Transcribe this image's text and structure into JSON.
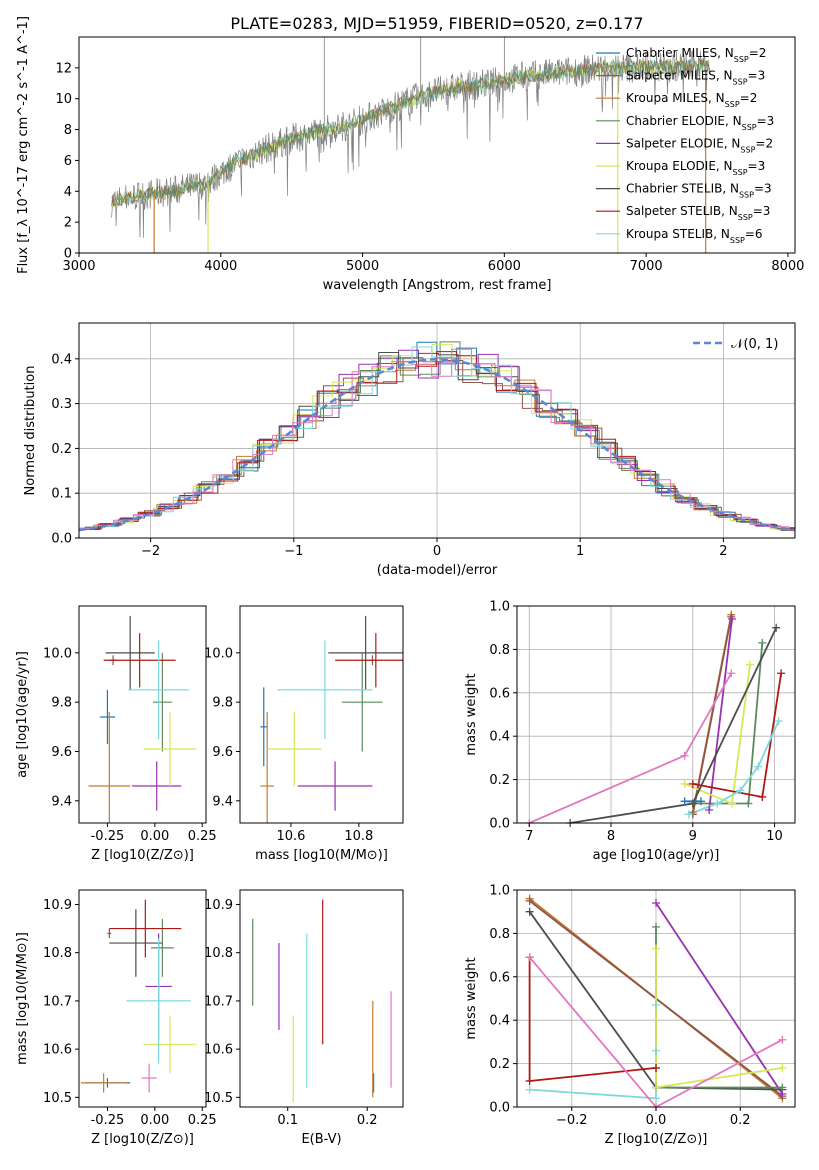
{
  "title": "PLATE=0283, MJD=51959, FIBERID=0520, z=0.177",
  "models": [
    {
      "name": "Chabrier MILES",
      "nssp": "2",
      "color": "#1f77b4"
    },
    {
      "name": "Salpeter MILES",
      "nssp": "3",
      "color": "#8c564b"
    },
    {
      "name": "Kroupa MILES",
      "nssp": "2",
      "color": "#c47a30"
    },
    {
      "name": "Chabrier ELODIE",
      "nssp": "3",
      "color": "#5c8a5c"
    },
    {
      "name": "Salpeter ELODIE",
      "nssp": "2",
      "color": "#9932b0"
    },
    {
      "name": "Kroupa ELODIE",
      "nssp": "3",
      "color": "#d4e85a"
    },
    {
      "name": "Chabrier STELIB",
      "nssp": "3",
      "color": "#4d4d4d"
    },
    {
      "name": "Salpeter STELIB",
      "nssp": "3",
      "color": "#b01818"
    },
    {
      "name": "Kroupa STELIB",
      "nssp": "6",
      "color": "#7fd8e0"
    }
  ],
  "colors": {
    "data": "#808080",
    "mean": "#e377c2",
    "normal": "#5a86d6",
    "grid": "#b0b0b0"
  },
  "chart_data": [
    {
      "type": "line",
      "id": "spectrum",
      "xlabel": "wavelength [Angstrom, rest frame]",
      "ylabel": "Flux [f_λ 10^-17 erg cm^-2 s^-1 A^-1]",
      "xlim": [
        3000,
        8050
      ],
      "ylim": [
        0,
        14
      ],
      "xticks": [
        3000,
        4000,
        5000,
        6000,
        7000,
        8000
      ],
      "yticks": [
        0,
        2,
        4,
        6,
        8,
        10,
        12
      ],
      "continuum": [
        [
          3230,
          3.3
        ],
        [
          3350,
          3.6
        ],
        [
          3500,
          3.8
        ],
        [
          3700,
          4.1
        ],
        [
          3900,
          4.5
        ],
        [
          4000,
          5.2
        ],
        [
          4100,
          5.8
        ],
        [
          4300,
          6.7
        ],
        [
          4500,
          7.4
        ],
        [
          4700,
          7.9
        ],
        [
          4900,
          8.3
        ],
        [
          5100,
          9.0
        ],
        [
          5300,
          9.8
        ],
        [
          5500,
          10.4
        ],
        [
          5700,
          10.8
        ],
        [
          5900,
          11.0
        ],
        [
          6100,
          11.4
        ],
        [
          6300,
          11.6
        ],
        [
          6500,
          11.8
        ],
        [
          6700,
          12.0
        ],
        [
          6900,
          12.0
        ],
        [
          7100,
          12.1
        ],
        [
          7300,
          12.1
        ],
        [
          7450,
          12.2
        ]
      ],
      "drop_lines": [
        [
          3530,
          "#c47a30"
        ],
        [
          3910,
          "#d4e85a"
        ],
        [
          6800,
          "#d4e85a"
        ],
        [
          7420,
          "#c47a30"
        ]
      ],
      "spikes": [
        [
          4730,
          14
        ],
        [
          5410,
          14
        ],
        [
          6000,
          14
        ]
      ]
    },
    {
      "type": "line",
      "id": "residual-histogram",
      "xlabel": "(data-model)/error",
      "ylabel": "Normed distribution",
      "xlim": [
        -2.5,
        2.5
      ],
      "ylim": [
        0,
        0.48
      ],
      "xticks": [
        -2,
        -1,
        0,
        1,
        2
      ],
      "yticks": [
        0,
        0.1,
        0.2,
        0.3,
        0.4
      ],
      "legend": "𝒩(0, 1)"
    },
    {
      "type": "scatter",
      "id": "age-vs-Z",
      "xlabel": "Z [log10(Z/Z⊙)]",
      "ylabel": "age [log10(age/yr)]",
      "xlim": [
        -0.4,
        0.27
      ],
      "ylim": [
        9.31,
        10.19
      ],
      "xticks": [
        -0.25,
        0.0,
        0.25
      ],
      "yticks": [
        9.4,
        9.6,
        9.8,
        10.0
      ],
      "points": [
        {
          "c": 0,
          "x": -0.25,
          "y": 9.74,
          "xe": 0.04,
          "ye": 0.11
        },
        {
          "c": 1,
          "x": -0.22,
          "y": 9.97,
          "xe": 0.02,
          "ye": 0.02
        },
        {
          "c": 2,
          "x": -0.24,
          "y": 9.46,
          "xe": 0.11,
          "ye": 0.3
        },
        {
          "c": 3,
          "x": 0.04,
          "y": 9.8,
          "xe": 0.05,
          "ye": 0.2
        },
        {
          "c": 4,
          "x": 0.01,
          "y": 9.46,
          "xe": 0.13,
          "ye": 0.1
        },
        {
          "c": 5,
          "x": 0.08,
          "y": 9.61,
          "xe": 0.14,
          "ye": 0.15
        },
        {
          "c": 6,
          "x": -0.13,
          "y": 10.0,
          "xe": 0.13,
          "ye": 0.15
        },
        {
          "c": 7,
          "x": -0.08,
          "y": 9.97,
          "xe": 0.19,
          "ye": 0.11
        },
        {
          "c": 8,
          "x": 0.02,
          "y": 9.85,
          "xe": 0.16,
          "ye": 0.2
        }
      ]
    },
    {
      "type": "scatter",
      "id": "age-vs-mass",
      "xlabel": "mass [log10(M/M⊙)]",
      "ylabel": "",
      "xlim": [
        10.45,
        10.93
      ],
      "ylim": [
        9.31,
        10.19
      ],
      "xticks": [
        10.6,
        10.8
      ],
      "yticks": [
        9.4,
        9.6,
        9.8,
        10.0
      ],
      "points": [
        {
          "c": 0,
          "x": 10.52,
          "y": 9.7,
          "xe": 0.01,
          "ye": 0.16
        },
        {
          "c": 1,
          "x": 10.84,
          "y": 9.97,
          "xe": 0.01,
          "ye": 0.02
        },
        {
          "c": 2,
          "x": 10.53,
          "y": 9.46,
          "xe": 0.02,
          "ye": 0.3
        },
        {
          "c": 3,
          "x": 10.81,
          "y": 9.8,
          "xe": 0.06,
          "ye": 0.2
        },
        {
          "c": 4,
          "x": 10.73,
          "y": 9.46,
          "xe": 0.11,
          "ye": 0.1
        },
        {
          "c": 5,
          "x": 10.61,
          "y": 9.61,
          "xe": 0.08,
          "ye": 0.15
        },
        {
          "c": 6,
          "x": 10.82,
          "y": 10.0,
          "xe": 0.11,
          "ye": 0.15
        },
        {
          "c": 7,
          "x": 10.85,
          "y": 9.97,
          "xe": 0.12,
          "ye": 0.11
        },
        {
          "c": 8,
          "x": 10.7,
          "y": 9.85,
          "xe": 0.14,
          "ye": 0.2
        }
      ]
    },
    {
      "type": "line",
      "id": "mass-weight-vs-age",
      "xlabel": "age [log10(age/yr)]",
      "ylabel": "mass weight",
      "xlim": [
        6.85,
        10.25
      ],
      "ylim": [
        0,
        1
      ],
      "xticks": [
        7,
        8,
        9,
        10
      ],
      "yticks": [
        0.0,
        0.2,
        0.4,
        0.6,
        0.8,
        1.0
      ],
      "series": [
        {
          "c": 3,
          "points": [
            [
              9.0,
              0.09
            ],
            [
              9.68,
              0.09
            ],
            [
              9.85,
              0.83
            ]
          ]
        },
        {
          "c": 2,
          "points": [
            [
              9.0,
              0.05
            ],
            [
              9.47,
              0.96
            ]
          ]
        },
        {
          "c": 1,
          "points": [
            [
              9.0,
              0.04
            ],
            [
              9.47,
              0.95
            ]
          ]
        },
        {
          "c": 4,
          "points": [
            [
              9.2,
              0.06
            ],
            [
              9.48,
              0.94
            ]
          ]
        },
        {
          "c": 5,
          "points": [
            [
              8.9,
              0.18
            ],
            [
              9.48,
              0.09
            ],
            [
              9.7,
              0.73
            ]
          ]
        },
        {
          "c": 6,
          "points": [
            [
              7.5,
              0.0
            ],
            [
              9.0,
              0.09
            ],
            [
              10.02,
              0.9
            ]
          ]
        },
        {
          "c": 7,
          "points": [
            [
              9.0,
              0.18
            ],
            [
              9.85,
              0.12
            ],
            [
              10.08,
              0.69
            ]
          ]
        },
        {
          "c": 8,
          "points": [
            [
              8.95,
              0.04
            ],
            [
              9.3,
              0.09
            ],
            [
              9.58,
              0.15
            ],
            [
              9.8,
              0.26
            ],
            [
              10.05,
              0.47
            ]
          ]
        },
        {
          "c": 0,
          "points": [
            [
              8.9,
              0.1
            ],
            [
              9.1,
              0.1
            ]
          ]
        },
        {
          "c": 9,
          "points": [
            [
              7.0,
              0.0
            ],
            [
              8.9,
              0.31
            ],
            [
              9.47,
              0.69
            ]
          ]
        }
      ]
    },
    {
      "type": "scatter",
      "id": "mass-vs-Z",
      "xlabel": "Z [log10(Z/Z⊙)]",
      "ylabel": "mass [log10(M/M⊙)]",
      "xlim": [
        -0.4,
        0.27
      ],
      "ylim": [
        10.48,
        10.93
      ],
      "xticks": [
        -0.25,
        0.0,
        0.25
      ],
      "yticks": [
        10.5,
        10.6,
        10.7,
        10.8,
        10.9
      ],
      "points": [
        {
          "c": 0,
          "x": -0.25,
          "y": 10.53,
          "xe": 0.12,
          "ye": 0.01
        },
        {
          "c": 1,
          "x": -0.24,
          "y": 10.84,
          "xe": 0.01,
          "ye": 0.01
        },
        {
          "c": 2,
          "x": -0.27,
          "y": 10.53,
          "xe": 0.12,
          "ye": 0.02
        },
        {
          "c": 3,
          "x": 0.04,
          "y": 10.81,
          "xe": 0.06,
          "ye": 0.06
        },
        {
          "c": 4,
          "x": 0.02,
          "y": 10.73,
          "xe": 0.07,
          "ye": 0.11
        },
        {
          "c": 5,
          "x": 0.08,
          "y": 10.61,
          "xe": 0.14,
          "ye": 0.06
        },
        {
          "c": 6,
          "x": -0.1,
          "y": 10.82,
          "xe": 0.14,
          "ye": 0.07
        },
        {
          "c": 7,
          "x": -0.05,
          "y": 10.85,
          "xe": 0.19,
          "ye": 0.06
        },
        {
          "c": 8,
          "x": 0.02,
          "y": 10.7,
          "xe": 0.17,
          "ye": 0.13
        },
        {
          "c": 9,
          "x": -0.03,
          "y": 10.54,
          "xe": 0.04,
          "ye": 0.03
        }
      ]
    },
    {
      "type": "scatter",
      "id": "mass-vs-EBV",
      "xlabel": "E(B-V)",
      "ylabel": "",
      "xlim": [
        0.04,
        0.245
      ],
      "ylim": [
        10.48,
        10.93
      ],
      "xticks": [
        0.1,
        0.2
      ],
      "yticks": [
        10.5,
        10.6,
        10.7,
        10.8,
        10.9
      ],
      "points": [
        {
          "c": 0,
          "x": 0.208,
          "y": 10.53,
          "xe": 0.0,
          "ye": 0.02
        },
        {
          "c": 2,
          "x": 0.207,
          "y": 10.6,
          "xe": 0.0,
          "ye": 0.1
        },
        {
          "c": 3,
          "x": 0.056,
          "y": 10.78,
          "xe": 0.0,
          "ye": 0.09
        },
        {
          "c": 4,
          "x": 0.089,
          "y": 10.73,
          "xe": 0.0,
          "ye": 0.09
        },
        {
          "c": 5,
          "x": 0.107,
          "y": 10.58,
          "xe": 0.0,
          "ye": 0.09
        },
        {
          "c": 7,
          "x": 0.144,
          "y": 10.76,
          "xe": 0.0,
          "ye": 0.15
        },
        {
          "c": 8,
          "x": 0.124,
          "y": 10.68,
          "xe": 0.0,
          "ye": 0.16
        },
        {
          "c": 9,
          "x": 0.23,
          "y": 10.62,
          "xe": 0.0,
          "ye": 0.1
        }
      ]
    },
    {
      "type": "line",
      "id": "mass-weight-vs-Z",
      "xlabel": "Z [log10(Z/Z⊙)]",
      "ylabel": "mass weight",
      "xlim": [
        -0.33,
        0.33
      ],
      "ylim": [
        0,
        1
      ],
      "xticks": [
        -0.2,
        0.0,
        0.2
      ],
      "yticks": [
        0.0,
        0.2,
        0.4,
        0.6,
        0.8,
        1.0
      ],
      "series": [
        {
          "c": 2,
          "points": [
            [
              -0.3,
              0.96
            ],
            [
              0.3,
              0.04
            ]
          ]
        },
        {
          "c": 1,
          "points": [
            [
              -0.3,
              0.95
            ],
            [
              0.3,
              0.05
            ]
          ]
        },
        {
          "c": 6,
          "points": [
            [
              -0.3,
              0.9
            ],
            [
              0.0,
              0.09
            ],
            [
              0.3,
              0.08
            ]
          ]
        },
        {
          "c": 7,
          "points": [
            [
              -0.3,
              0.69
            ],
            [
              -0.3,
              0.12
            ],
            [
              0.0,
              0.18
            ]
          ]
        },
        {
          "c": 8,
          "points": [
            [
              -0.3,
              0.08
            ],
            [
              0.0,
              0.04
            ],
            [
              0.0,
              0.26
            ],
            [
              0.0,
              0.47
            ]
          ]
        },
        {
          "c": 4,
          "points": [
            [
              0.0,
              0.94
            ],
            [
              0.3,
              0.06
            ]
          ]
        },
        {
          "c": 3,
          "points": [
            [
              0.0,
              0.83
            ],
            [
              0.0,
              0.09
            ],
            [
              0.3,
              0.09
            ]
          ]
        },
        {
          "c": 5,
          "points": [
            [
              0.0,
              0.73
            ],
            [
              0.0,
              0.09
            ],
            [
              0.3,
              0.18
            ]
          ]
        },
        {
          "c": 9,
          "points": [
            [
              -0.3,
              0.69
            ],
            [
              0.0,
              0.0
            ],
            [
              0.3,
              0.31
            ]
          ]
        }
      ]
    }
  ]
}
